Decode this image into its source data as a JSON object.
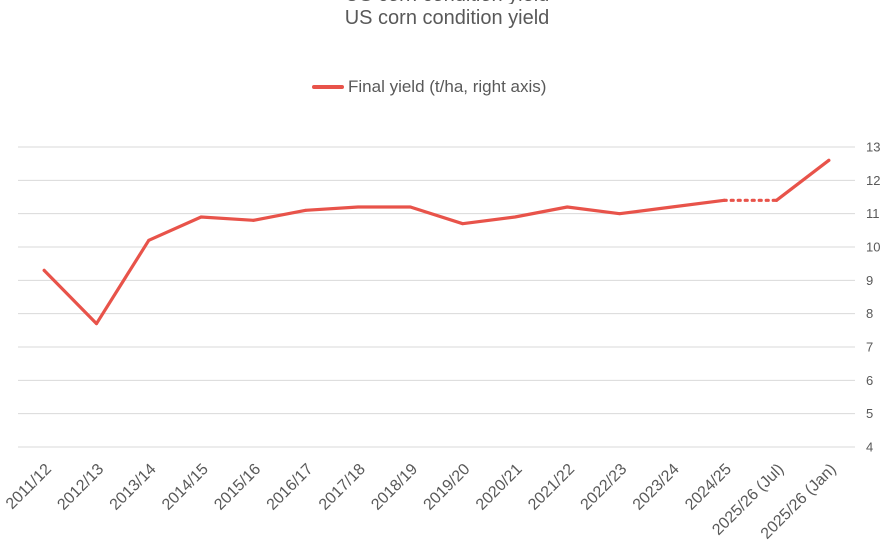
{
  "chart_data": {
    "type": "line",
    "title": "US corn condition yield",
    "categories": [
      "2011/12",
      "2012/13",
      "2013/14",
      "2014/15",
      "2015/16",
      "2016/17",
      "2017/18",
      "2018/19",
      "2019/20",
      "2020/21",
      "2021/22",
      "2022/23",
      "2023/24",
      "2024/25",
      "2025/26 (Jul)",
      "2025/26 (Jan)"
    ],
    "series": [
      {
        "name": "Final yield (t/ha, right axis)",
        "axis": "right",
        "color": "#E8534A",
        "values": [
          9.3,
          7.7,
          10.2,
          10.9,
          10.8,
          11.1,
          11.2,
          11.2,
          10.7,
          10.9,
          11.2,
          11.0,
          11.2,
          11.4,
          11.4,
          12.6
        ],
        "dotted_from_index": 13,
        "dotted_to_index": 14
      }
    ],
    "right_axis": {
      "min": 4,
      "max": 13,
      "ticks": [
        4,
        5,
        6,
        7,
        8,
        9,
        10,
        11,
        12,
        13
      ]
    },
    "grid": true,
    "legend_position": "top"
  }
}
